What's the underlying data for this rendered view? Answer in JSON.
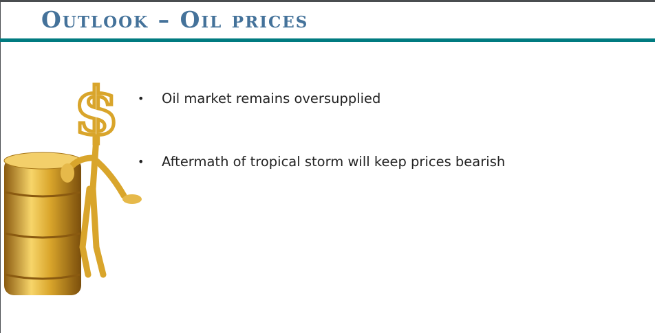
{
  "slide": {
    "title": "Outlook – Oil prices",
    "bullets": [
      "Oil market remains oversupplied",
      "Aftermath of tropical storm will keep prices bearish"
    ],
    "illustration": "gold-oil-barrel-dollar-figure",
    "colors": {
      "title": "#44729a",
      "rule": "#007b80",
      "gold": "#d9a52b"
    }
  }
}
